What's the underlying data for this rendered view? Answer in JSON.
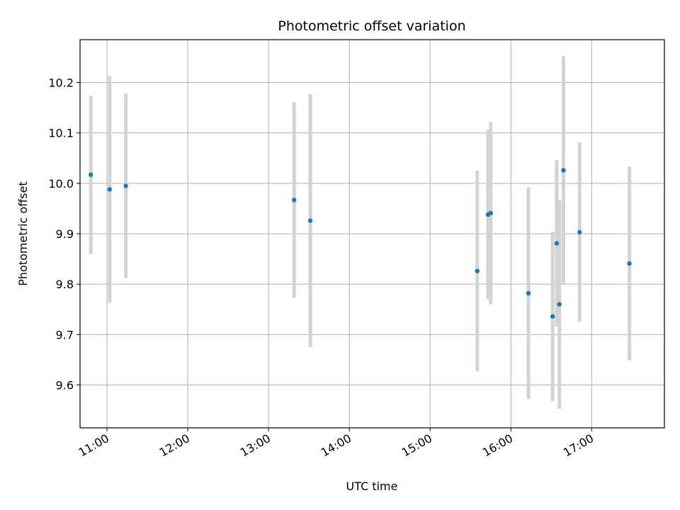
{
  "chart_data": {
    "type": "scatter",
    "title": "Photometric offset variation",
    "xlabel": "UTC time",
    "ylabel": "Photometric offset",
    "xlim": [
      "10:40",
      "17:54"
    ],
    "ylim": [
      9.515,
      10.285
    ],
    "x_ticks": [
      "11:00",
      "12:00",
      "13:00",
      "14:00",
      "15:00",
      "16:00",
      "17:00"
    ],
    "y_ticks": [
      "9.6",
      "9.7",
      "9.8",
      "9.9",
      "10.0",
      "10.1",
      "10.2"
    ],
    "grid": true,
    "colors": {
      "point": "#1f77b4",
      "errorbar": "#d3d3d3",
      "grid": "#b0b0b0"
    },
    "series": [
      {
        "points": [
          {
            "x": "10:48",
            "y": 10.017,
            "err": 0.157
          },
          {
            "x": "11:02",
            "y": 9.988,
            "err": 0.225
          },
          {
            "x": "11:14",
            "y": 9.995,
            "err": 0.183
          },
          {
            "x": "13:19",
            "y": 9.967,
            "err": 0.194
          },
          {
            "x": "13:31",
            "y": 9.926,
            "err": 0.251
          },
          {
            "x": "15:35",
            "y": 9.826,
            "err": 0.199
          },
          {
            "x": "15:43",
            "y": 9.938,
            "err": 0.168
          },
          {
            "x": "15:45",
            "y": 9.941,
            "err": 0.181
          },
          {
            "x": "16:13",
            "y": 9.782,
            "err": 0.21
          },
          {
            "x": "16:31",
            "y": 9.736,
            "err": 0.168
          },
          {
            "x": "16:34",
            "y": 9.881,
            "err": 0.165
          },
          {
            "x": "16:36",
            "y": 9.76,
            "err": 0.207
          },
          {
            "x": "16:39",
            "y": 10.026,
            "err": 0.226
          },
          {
            "x": "16:51",
            "y": 9.903,
            "err": 0.178
          },
          {
            "x": "17:28",
            "y": 9.841,
            "err": 0.192
          }
        ]
      }
    ]
  }
}
